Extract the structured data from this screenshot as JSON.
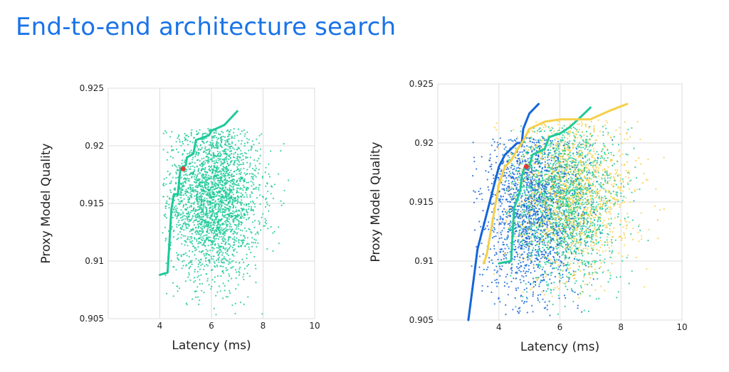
{
  "title": "End-to-end architecture search",
  "colors": {
    "title": "#1a73e8",
    "green": "#1ec999",
    "blue": "#1565d8",
    "yellow": "#f5d04a",
    "red": "#e53935",
    "grid": "#dcdcdc"
  },
  "chart_data": [
    {
      "type": "scatter",
      "title": "",
      "xlabel": "Latency (ms)",
      "ylabel": "Proxy Model Quality",
      "xlim": [
        2.0,
        10.0
      ],
      "ylim": [
        0.905,
        0.925
      ],
      "xticks": [
        "4",
        "6",
        "8",
        "10"
      ],
      "yticks": [
        "0.925",
        "0.92",
        "0.915",
        "0.91",
        "0.905"
      ],
      "grid": true,
      "series": [
        {
          "kind": "points",
          "color": "green",
          "count": 2600,
          "center": [
            6.1,
            0.9155
          ],
          "spread": [
            0.9,
            0.0035
          ],
          "xlim": [
            4.1,
            9.3
          ],
          "ylim": [
            0.905,
            0.9215
          ]
        },
        {
          "kind": "frontier",
          "color": "green",
          "points": [
            [
              4.0,
              0.9088
            ],
            [
              4.3,
              0.909
            ],
            [
              4.45,
              0.9145
            ],
            [
              4.55,
              0.9158
            ],
            [
              4.7,
              0.9158
            ],
            [
              4.75,
              0.917
            ],
            [
              4.8,
              0.918
            ],
            [
              5.0,
              0.9183
            ],
            [
              5.05,
              0.919
            ],
            [
              5.3,
              0.9193
            ],
            [
              5.4,
              0.9205
            ],
            [
              5.9,
              0.9209
            ],
            [
              6.0,
              0.9213
            ],
            [
              6.5,
              0.9218
            ],
            [
              7.0,
              0.923
            ]
          ]
        }
      ],
      "highlight": {
        "x": 4.9,
        "y": 0.918,
        "color": "red"
      }
    },
    {
      "type": "scatter",
      "title": "",
      "xlabel": "Latency (ms)",
      "ylabel": "Proxy Model Quality",
      "xlim": [
        2.0,
        10.0
      ],
      "ylim": [
        0.905,
        0.925
      ],
      "xticks": [
        "4",
        "6",
        "8",
        "10"
      ],
      "yticks": [
        "0.925",
        "0.92",
        "0.915",
        "0.91",
        "0.905"
      ],
      "grid": true,
      "series": [
        {
          "kind": "points",
          "color": "blue",
          "count": 1500,
          "center": [
            5.0,
            0.9145
          ],
          "spread": [
            0.8,
            0.004
          ],
          "xlim": [
            3.1,
            9.6
          ],
          "ylim": [
            0.905,
            0.9205
          ]
        },
        {
          "kind": "points",
          "color": "green",
          "count": 1800,
          "center": [
            6.1,
            0.9155
          ],
          "spread": [
            0.9,
            0.0037
          ],
          "xlim": [
            4.2,
            9.5
          ],
          "ylim": [
            0.905,
            0.9215
          ]
        },
        {
          "kind": "points",
          "color": "yellow",
          "count": 1400,
          "center": [
            6.4,
            0.9158
          ],
          "spread": [
            1.0,
            0.0035
          ],
          "xlim": [
            3.8,
            9.8
          ],
          "ylim": [
            0.906,
            0.922
          ]
        },
        {
          "kind": "frontier",
          "color": "blue",
          "points": [
            [
              3.0,
              0.905
            ],
            [
              3.2,
              0.909
            ],
            [
              3.3,
              0.911
            ],
            [
              3.55,
              0.9135
            ],
            [
              3.7,
              0.915
            ],
            [
              3.85,
              0.9165
            ],
            [
              4.0,
              0.918
            ],
            [
              4.2,
              0.919
            ],
            [
              4.4,
              0.9195
            ],
            [
              4.6,
              0.92
            ],
            [
              4.75,
              0.92
            ],
            [
              4.8,
              0.9212
            ],
            [
              5.0,
              0.9225
            ],
            [
              5.3,
              0.9233
            ]
          ]
        },
        {
          "kind": "frontier",
          "color": "green",
          "points": [
            [
              4.0,
              0.9098
            ],
            [
              4.4,
              0.91
            ],
            [
              4.5,
              0.9145
            ],
            [
              4.6,
              0.9152
            ],
            [
              4.7,
              0.916
            ],
            [
              4.75,
              0.9172
            ],
            [
              4.85,
              0.918
            ],
            [
              5.0,
              0.918
            ],
            [
              5.1,
              0.919
            ],
            [
              5.5,
              0.9195
            ],
            [
              5.65,
              0.9205
            ],
            [
              6.0,
              0.9208
            ],
            [
              6.3,
              0.9213
            ],
            [
              6.6,
              0.922
            ],
            [
              7.0,
              0.923
            ]
          ]
        },
        {
          "kind": "frontier",
          "color": "yellow",
          "points": [
            [
              3.5,
              0.9098
            ],
            [
              3.6,
              0.9105
            ],
            [
              3.8,
              0.9135
            ],
            [
              4.0,
              0.9165
            ],
            [
              4.2,
              0.918
            ],
            [
              4.4,
              0.9185
            ],
            [
              4.55,
              0.9192
            ],
            [
              4.8,
              0.9202
            ],
            [
              5.0,
              0.9212
            ],
            [
              5.5,
              0.9218
            ],
            [
              6.0,
              0.922
            ],
            [
              7.0,
              0.922
            ],
            [
              7.6,
              0.9227
            ],
            [
              8.2,
              0.9233
            ]
          ]
        }
      ],
      "highlight": {
        "x": 4.9,
        "y": 0.918,
        "color": "red"
      }
    }
  ]
}
